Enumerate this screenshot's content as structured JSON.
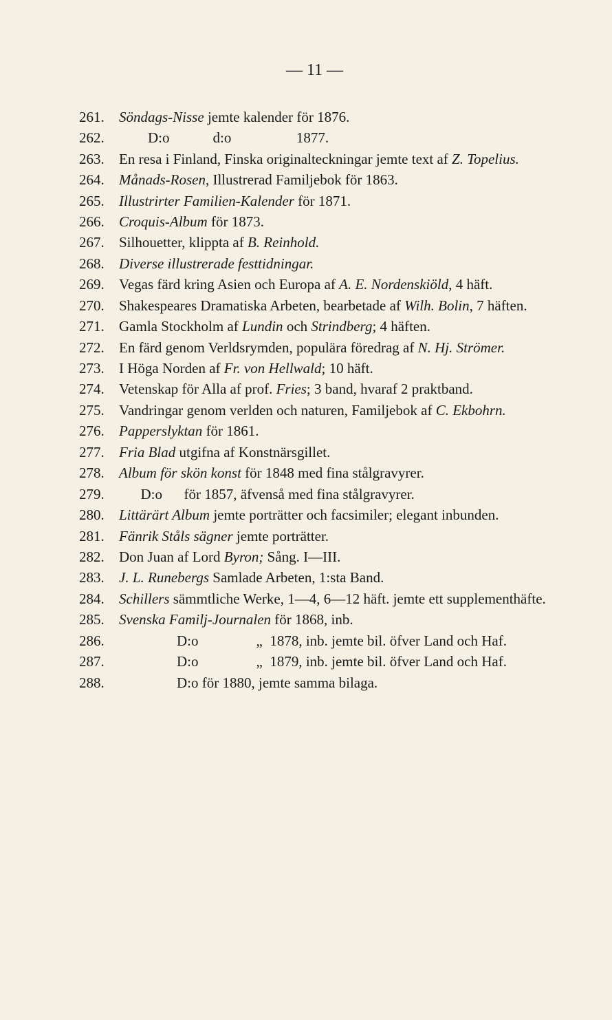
{
  "pageNumber": "— 11 —",
  "entries": [
    {
      "num": "261.",
      "text": "<em>Söndags-Nisse</em> jemte kalender för 1876."
    },
    {
      "num": "262.",
      "text": "&nbsp;&nbsp;&nbsp;&nbsp;&nbsp;&nbsp;&nbsp;&nbsp;D:o&nbsp;&nbsp;&nbsp;&nbsp;&nbsp;&nbsp;&nbsp;&nbsp;&nbsp;&nbsp;&nbsp;&nbsp;d:o&nbsp;&nbsp;&nbsp;&nbsp;&nbsp;&nbsp;&nbsp;&nbsp;&nbsp;&nbsp;&nbsp;&nbsp;&nbsp;&nbsp;&nbsp;&nbsp;&nbsp;&nbsp;1877."
    },
    {
      "num": "263.",
      "text": "En resa i Finland, Finska originalteckningar jemte text af <em>Z. Topelius.</em>"
    },
    {
      "num": "264.",
      "text": "<em>Månads-Rosen</em>, Illustrerad Familjebok för 1863."
    },
    {
      "num": "265.",
      "text": "<em>Illustrirter Familien-Kalender</em> för 1871."
    },
    {
      "num": "266.",
      "text": "<em>Croquis-Album</em> för 1873."
    },
    {
      "num": "267.",
      "text": "Silhouetter, klippta af <em>B. Reinhold.</em>"
    },
    {
      "num": "268.",
      "text": "<em>Diverse illustrerade festtidningar.</em>"
    },
    {
      "num": "269.",
      "text": "Vegas färd kring Asien och Europa af <em>A. E. Nordenskiöld</em>, 4 häft."
    },
    {
      "num": "270.",
      "text": "Shakespeares Dramatiska Arbeten, bearbetade af <em>Wilh. Bolin</em>, 7 häften."
    },
    {
      "num": "271.",
      "text": "Gamla Stockholm af <em>Lundin</em> och <em>Strindberg</em>; 4 häften."
    },
    {
      "num": "272.",
      "text": "En färd genom Verldsrymden, populära föredrag af <em>N. Hj. Strömer.</em>"
    },
    {
      "num": "273.",
      "text": "I Höga Norden af <em>Fr. von Hellwald</em>; 10 häft."
    },
    {
      "num": "274.",
      "text": "Vetenskap för Alla af prof. <em>Fries</em>; 3 band, hvaraf 2 praktband."
    },
    {
      "num": "275.",
      "text": "Vandringar genom verlden och naturen, Familjebok af <em>C. Ekbohrn.</em>"
    },
    {
      "num": "276.",
      "text": "<em>Papperslyktan</em> för 1861."
    },
    {
      "num": "277.",
      "text": "<em>Fria Blad</em> utgifna af Konstnärsgillet."
    },
    {
      "num": "278.",
      "text": "<em>Album för skön konst</em> för 1848 med fina stålgravyrer."
    },
    {
      "num": "279.",
      "text": "&nbsp;&nbsp;&nbsp;&nbsp;&nbsp;&nbsp;D:o&nbsp;&nbsp;&nbsp;&nbsp;&nbsp;&nbsp;för 1857, äfvenså med fina stålgravyrer."
    },
    {
      "num": "280.",
      "text": "<em>Littärärt Album</em> jemte porträtter och facsimiler; elegant inbunden."
    },
    {
      "num": "281.",
      "text": "<em>Fänrik Ståls sägner</em> jemte porträtter."
    },
    {
      "num": "282.",
      "text": "Don Juan af Lord <em>Byron;</em> Sång. I—III."
    },
    {
      "num": "283.",
      "text": "<em>J. L. Runebergs</em> Samlade Arbeten, 1:sta Band."
    },
    {
      "num": "284.",
      "text": "<em>Schillers</em> sämmtliche Werke, 1—4, 6—12 häft. jemte ett supplementhäfte."
    },
    {
      "num": "285.",
      "text": "<em>Svenska Familj-Journalen</em> för 1868, inb."
    },
    {
      "num": "286.",
      "text": "&nbsp;&nbsp;&nbsp;&nbsp;&nbsp;&nbsp;&nbsp;&nbsp;&nbsp;&nbsp;&nbsp;&nbsp;&nbsp;&nbsp;&nbsp;&nbsp;D:o&nbsp;&nbsp;&nbsp;&nbsp;&nbsp;&nbsp;&nbsp;&nbsp;&nbsp;&nbsp;&nbsp;&nbsp;&nbsp;&nbsp;&nbsp;&nbsp;„&nbsp;&nbsp;1878, inb. jemte bil. öfver Land och Haf."
    },
    {
      "num": "287.",
      "text": "&nbsp;&nbsp;&nbsp;&nbsp;&nbsp;&nbsp;&nbsp;&nbsp;&nbsp;&nbsp;&nbsp;&nbsp;&nbsp;&nbsp;&nbsp;&nbsp;D:o&nbsp;&nbsp;&nbsp;&nbsp;&nbsp;&nbsp;&nbsp;&nbsp;&nbsp;&nbsp;&nbsp;&nbsp;&nbsp;&nbsp;&nbsp;&nbsp;„&nbsp;&nbsp;1879, inb. jemte bil. öfver Land och Haf."
    },
    {
      "num": "288.",
      "text": "&nbsp;&nbsp;&nbsp;&nbsp;&nbsp;&nbsp;&nbsp;&nbsp;&nbsp;&nbsp;&nbsp;&nbsp;&nbsp;&nbsp;&nbsp;&nbsp;D:o för 1880, jemte samma bilaga."
    }
  ]
}
